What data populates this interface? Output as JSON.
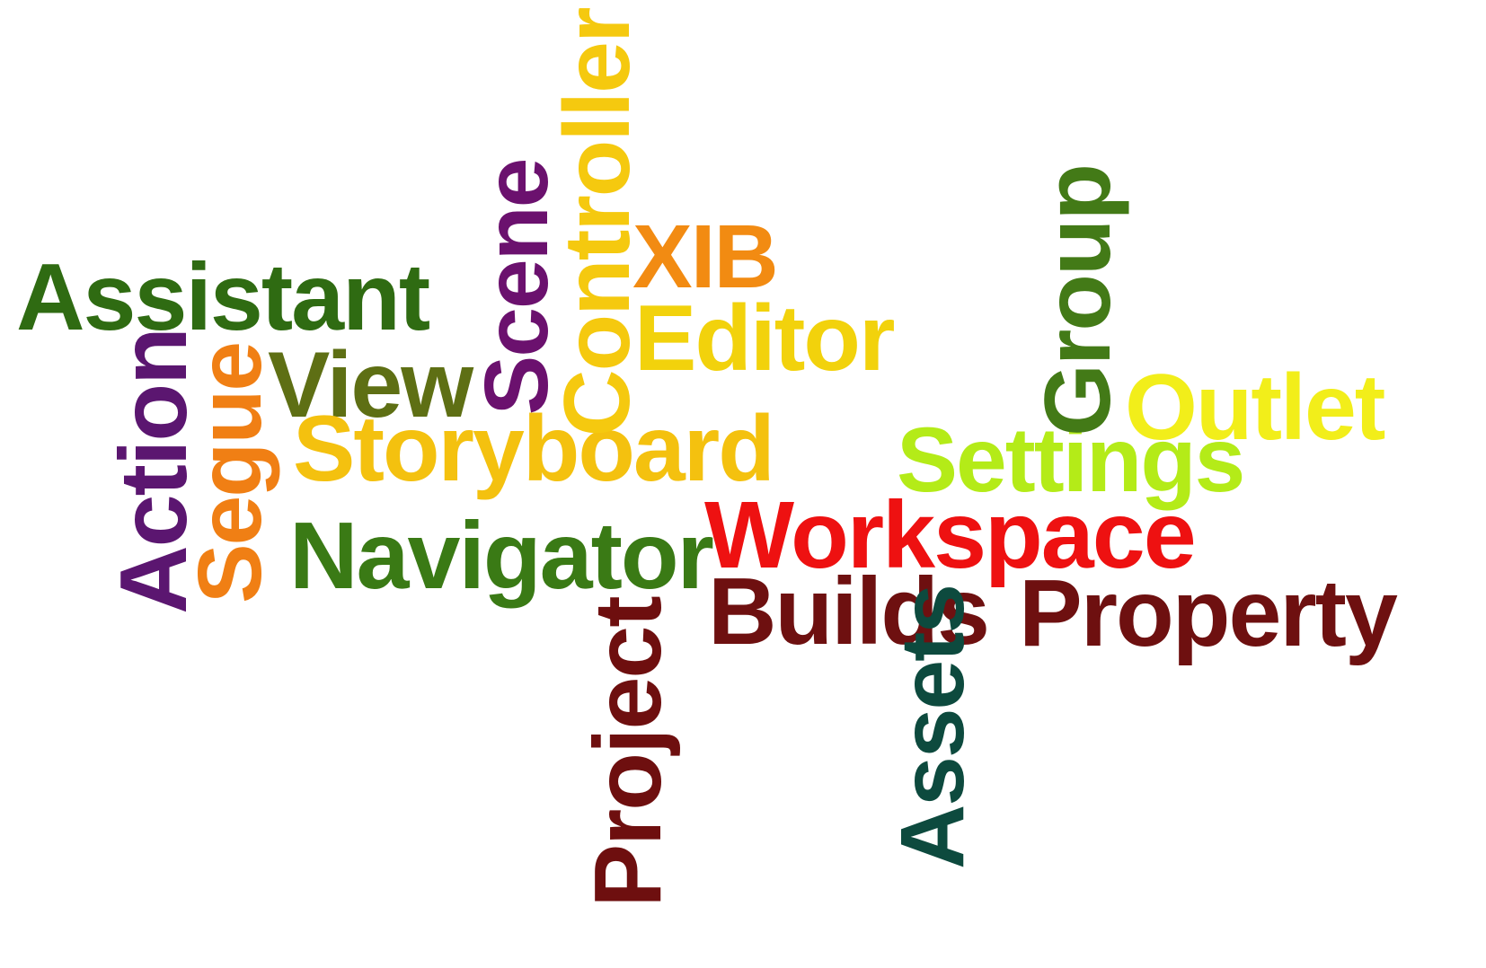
{
  "words": {
    "assistant": {
      "text": "Assistant",
      "color": "#2F6B12"
    },
    "action": {
      "text": "Action",
      "color": "#5B1670"
    },
    "segue": {
      "text": "Segue",
      "color": "#F07F14"
    },
    "view": {
      "text": "View",
      "color": "#5E6F14"
    },
    "scene": {
      "text": "Scene",
      "color": "#6B116E"
    },
    "controller": {
      "text": "Controller",
      "color": "#F5C90F"
    },
    "xib": {
      "text": "XIB",
      "color": "#F28B12"
    },
    "editor": {
      "text": "Editor",
      "color": "#F2D20C"
    },
    "storyboard": {
      "text": "Storyboard",
      "color": "#F4C10F"
    },
    "navigator": {
      "text": "Navigator",
      "color": "#3A7A15"
    },
    "project": {
      "text": "Project",
      "color": "#6E0F0F"
    },
    "builds": {
      "text": "Builds",
      "color": "#6E1010"
    },
    "workspace": {
      "text": "Workspace",
      "color": "#EE1111"
    },
    "assets": {
      "text": "Assets",
      "color": "#0D4A3E"
    },
    "group": {
      "text": "Group",
      "color": "#437A17"
    },
    "outlet": {
      "text": "Outlet",
      "color": "#F2EE1A"
    },
    "settings": {
      "text": "Settings",
      "color": "#B4EB18"
    },
    "property": {
      "text": "Property",
      "color": "#6E1010"
    }
  }
}
